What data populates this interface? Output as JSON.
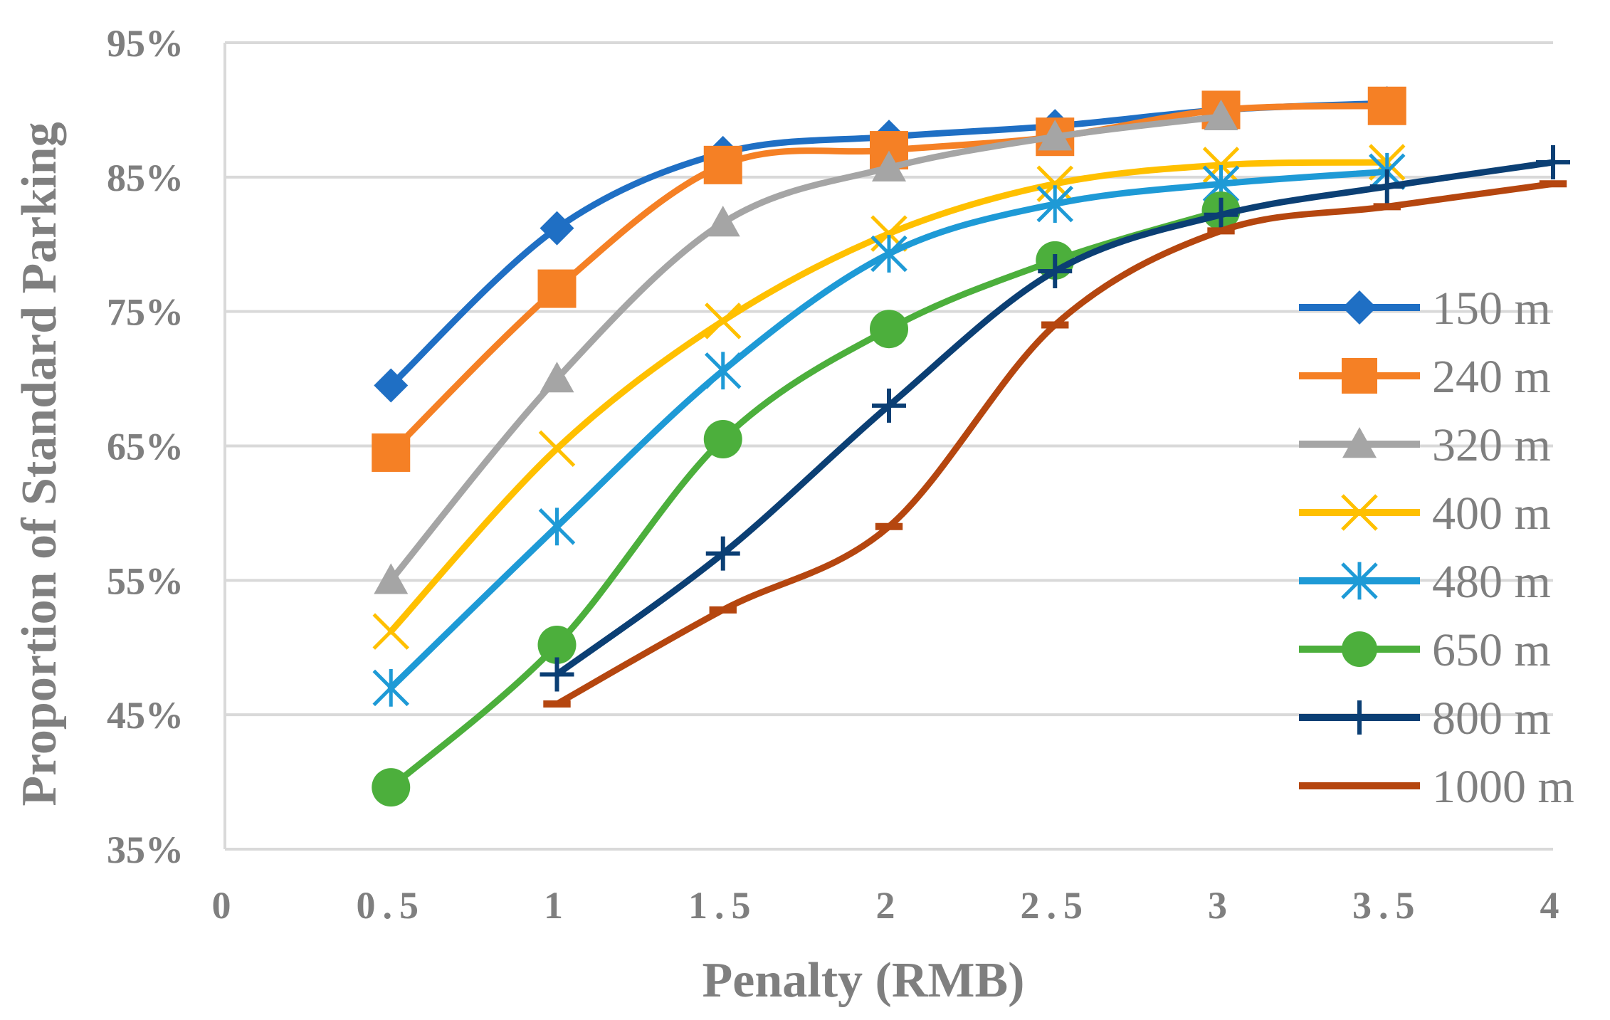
{
  "chart_data": {
    "type": "line",
    "title": "",
    "xlabel": "Penalty (RMB)",
    "ylabel": "Proportion of Standard Parking",
    "xlim": [
      0,
      4
    ],
    "ylim": [
      35,
      95
    ],
    "xticks": [
      {
        "value": 0,
        "label": "0"
      },
      {
        "value": 0.5,
        "label": "0.5"
      },
      {
        "value": 1,
        "label": "1"
      },
      {
        "value": 1.5,
        "label": "1.5"
      },
      {
        "value": 2,
        "label": "2"
      },
      {
        "value": 2.5,
        "label": "2.5"
      },
      {
        "value": 3,
        "label": "3"
      },
      {
        "value": 3.5,
        "label": "3.5"
      },
      {
        "value": 4,
        "label": "4"
      }
    ],
    "yticks": [
      {
        "value": 35,
        "label": "35%"
      },
      {
        "value": 45,
        "label": "45%"
      },
      {
        "value": 55,
        "label": "55%"
      },
      {
        "value": 65,
        "label": "65%"
      },
      {
        "value": 75,
        "label": "75%"
      },
      {
        "value": 85,
        "label": "85%"
      },
      {
        "value": 95,
        "label": "95%"
      }
    ],
    "grid": "horizontal",
    "legend_position": "right",
    "series": [
      {
        "name": "150 m",
        "color": "#1f6fc4",
        "marker": "diamond",
        "x": [
          0.5,
          1,
          1.5,
          2,
          2.5,
          3,
          3.5
        ],
        "y": [
          69.5,
          81.2,
          86.8,
          88.0,
          88.8,
          90.0,
          90.5
        ]
      },
      {
        "name": "240 m",
        "color": "#f58025",
        "marker": "square",
        "x": [
          0.5,
          1,
          1.5,
          2,
          2.5,
          3,
          3.5
        ],
        "y": [
          64.5,
          76.7,
          85.9,
          87.0,
          88.0,
          90.0,
          90.3
        ]
      },
      {
        "name": "320 m",
        "color": "#a5a5a5",
        "marker": "triangle",
        "x": [
          0.5,
          1,
          1.5,
          2,
          2.5,
          3
        ],
        "y": [
          55.0,
          70.0,
          81.6,
          85.7,
          88.0,
          89.5
        ]
      },
      {
        "name": "400 m",
        "color": "#ffc000",
        "marker": "x",
        "x": [
          0.5,
          1,
          1.5,
          2,
          2.5,
          3,
          3.5
        ],
        "y": [
          51.2,
          64.8,
          74.3,
          80.8,
          84.5,
          85.9,
          86.1
        ]
      },
      {
        "name": "480 m",
        "color": "#1e9ad6",
        "marker": "asterisk",
        "x": [
          0.5,
          1,
          1.5,
          2,
          2.5,
          3,
          3.5
        ],
        "y": [
          47.0,
          59.0,
          70.6,
          79.3,
          83.0,
          84.5,
          85.4
        ]
      },
      {
        "name": "650 m",
        "color": "#4caf3c",
        "marker": "circle",
        "x": [
          0.5,
          1,
          1.5,
          2,
          2.5,
          3
        ],
        "y": [
          39.6,
          50.2,
          65.5,
          73.7,
          78.8,
          82.5
        ]
      },
      {
        "name": "800 m",
        "color": "#0b3f74",
        "marker": "plus",
        "x": [
          1,
          1.5,
          2,
          2.5,
          3,
          3.5,
          4
        ],
        "y": [
          48.0,
          57.0,
          68.0,
          78.0,
          82.2,
          84.3,
          86.1
        ]
      },
      {
        "name": "1000 m",
        "color": "#b5460f",
        "marker": "dash",
        "x": [
          1,
          1.5,
          2,
          2.5,
          3,
          3.5,
          4
        ],
        "y": [
          45.8,
          52.8,
          59.0,
          74.0,
          81.0,
          82.8,
          84.5
        ]
      }
    ]
  }
}
